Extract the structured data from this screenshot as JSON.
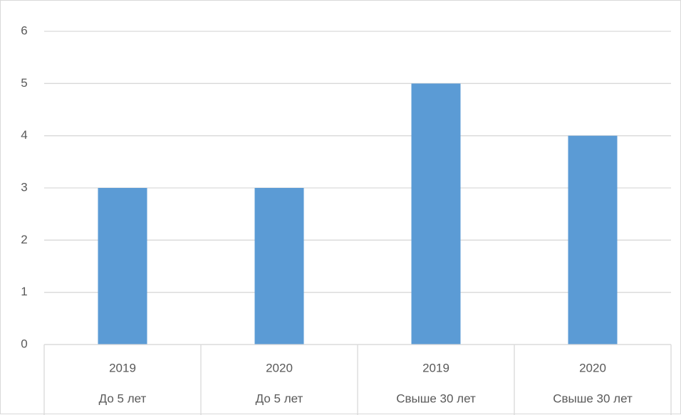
{
  "chart_data": {
    "type": "bar",
    "categories": [
      {
        "year": "2019",
        "group": "До 5 лет"
      },
      {
        "year": "2020",
        "group": "До 5 лет"
      },
      {
        "year": "2019",
        "group": "Свыше 30 лет"
      },
      {
        "year": "2020",
        "group": "Свыше 30 лет"
      }
    ],
    "values": [
      3,
      3,
      5,
      4
    ],
    "ylim": [
      0,
      6
    ],
    "yticks": [
      "0",
      "1",
      "2",
      "3",
      "4",
      "5",
      "6"
    ],
    "grid": true,
    "legend": "none",
    "colors": {
      "bar": "#5b9bd5",
      "grid": "#d9d9d9",
      "text": "#595959"
    }
  }
}
